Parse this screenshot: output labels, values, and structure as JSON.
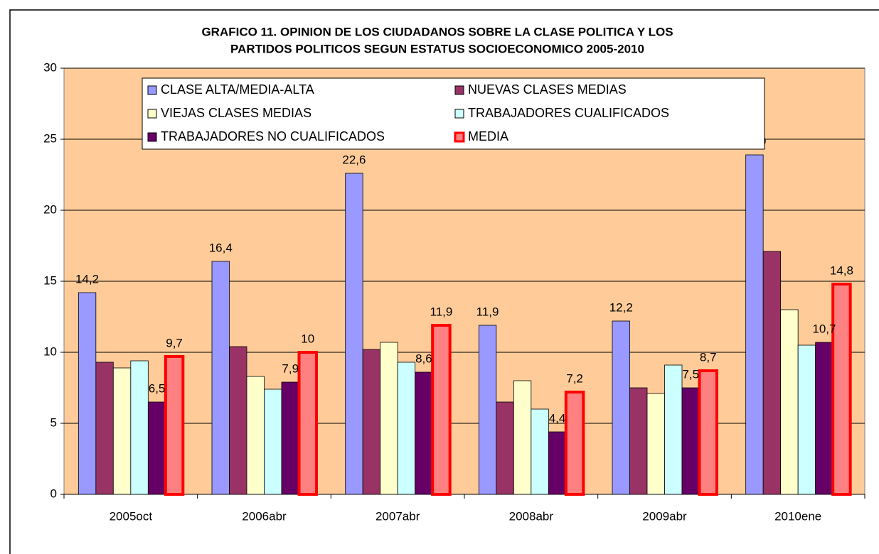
{
  "chart_data": {
    "type": "bar",
    "title": [
      "GRAFICO 11. OPINION DE LOS CIUDADANOS SOBRE LA CLASE POLITICA Y LOS",
      "PARTIDOS POLITICOS SEGUN ESTATUS SOCIOECONOMICO 2005-2010"
    ],
    "categories": [
      "2005oct",
      "2006abr",
      "2007abr",
      "2008abr",
      "2009abr",
      "2010ene"
    ],
    "series": [
      {
        "name": "CLASE ALTA/MEDIA-ALTA",
        "color": "#9999ff",
        "values": [
          14.2,
          16.4,
          22.6,
          11.9,
          12.2,
          23.9
        ],
        "value_labels": [
          "14,2",
          "16,4",
          "22,6",
          "11,9",
          "12,2",
          "23,9"
        ]
      },
      {
        "name": "NUEVAS CLASES MEDIAS",
        "color": "#993366",
        "values": [
          9.3,
          10.4,
          10.2,
          6.5,
          7.5,
          17.1
        ]
      },
      {
        "name": "VIEJAS CLASES MEDIAS",
        "color": "#ffffcc",
        "values": [
          8.9,
          8.3,
          10.7,
          8.0,
          7.1,
          13.0
        ]
      },
      {
        "name": "TRABAJADORES CUALIFICADOS",
        "color": "#ccffff",
        "values": [
          9.4,
          7.4,
          9.3,
          6.0,
          9.1,
          10.5
        ]
      },
      {
        "name": "TRABAJADORES NO CUALIFICADOS",
        "color": "#660066",
        "values": [
          6.5,
          7.9,
          8.6,
          4.4,
          7.5,
          10.7
        ],
        "value_labels": [
          "6,5",
          "7,9",
          "8,6",
          "4,4",
          "7,5",
          "10,7"
        ]
      },
      {
        "name": "MEDIA",
        "color": "#ff8080",
        "border": "#ff0000",
        "values": [
          9.7,
          10,
          11.9,
          7.2,
          8.7,
          14.8
        ],
        "value_labels": [
          "9,7",
          "10",
          "11,9",
          "7,2",
          "8,7",
          "14,8"
        ]
      }
    ],
    "ylim": [
      0,
      30
    ],
    "yticks": [
      0,
      5,
      10,
      15,
      20,
      25,
      30
    ],
    "grid": true,
    "plot_background": "#ffcc99"
  }
}
